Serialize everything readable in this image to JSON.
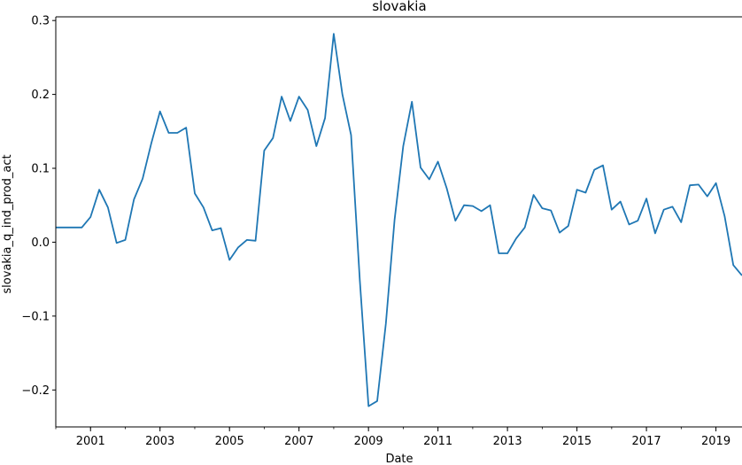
{
  "chart_data": {
    "type": "line",
    "title": "slovakia",
    "xlabel": "Date",
    "ylabel": "slovakia_q_ind_prod_act",
    "xlim": [
      "2000-01-01",
      "2019-10-01"
    ],
    "ylim": [
      -0.25,
      0.305
    ],
    "x_ticks": [
      "2001",
      "2003",
      "2005",
      "2007",
      "2009",
      "2011",
      "2013",
      "2015",
      "2017",
      "2019"
    ],
    "y_ticks": [
      -0.2,
      -0.1,
      0.0,
      0.1,
      0.2,
      0.3
    ],
    "y_tick_labels": [
      "−0.2",
      "−0.1",
      "0.0",
      "0.1",
      "0.2",
      "0.3"
    ],
    "grid": false,
    "legend": "none",
    "colors": {
      "line": "#1f77b4",
      "axes": "#000000",
      "background": "#ffffff"
    },
    "series": [
      {
        "x": [
          "2000-01",
          "2000-04",
          "2000-07",
          "2000-10",
          "2001-01",
          "2001-04",
          "2001-07",
          "2001-10",
          "2002-01",
          "2002-04",
          "2002-07",
          "2002-10",
          "2003-01",
          "2003-04",
          "2003-07",
          "2003-10",
          "2004-01",
          "2004-04",
          "2004-07",
          "2004-10",
          "2005-01",
          "2005-04",
          "2005-07",
          "2005-10",
          "2006-01",
          "2006-04",
          "2006-07",
          "2006-10",
          "2007-01",
          "2007-04",
          "2007-07",
          "2007-10",
          "2008-01",
          "2008-04",
          "2008-07",
          "2008-10",
          "2009-01",
          "2009-04",
          "2009-07",
          "2009-10",
          "2010-01",
          "2010-04",
          "2010-07",
          "2010-10",
          "2011-01",
          "2011-04",
          "2011-07",
          "2011-10",
          "2012-01",
          "2012-04",
          "2012-07",
          "2012-10",
          "2013-01",
          "2013-04",
          "2013-07",
          "2013-10",
          "2014-01",
          "2014-04",
          "2014-07",
          "2014-10",
          "2015-01",
          "2015-04",
          "2015-07",
          "2015-10",
          "2016-01",
          "2016-04",
          "2016-07",
          "2016-10",
          "2017-01",
          "2017-04",
          "2017-07",
          "2017-10",
          "2018-01",
          "2018-04",
          "2018-07",
          "2018-10",
          "2019-01",
          "2019-04",
          "2019-07",
          "2019-10"
        ],
        "values": [
          0.02,
          0.02,
          0.02,
          0.02,
          0.034,
          0.071,
          0.047,
          -0.001,
          0.003,
          0.058,
          0.086,
          0.134,
          0.177,
          0.148,
          0.148,
          0.155,
          0.066,
          0.047,
          0.016,
          0.019,
          -0.024,
          -0.007,
          0.003,
          0.002,
          0.124,
          0.141,
          0.197,
          0.164,
          0.197,
          0.179,
          0.13,
          0.168,
          0.282,
          0.2,
          0.145,
          -0.052,
          -0.222,
          -0.215,
          -0.11,
          0.03,
          0.13,
          0.19,
          0.101,
          0.085,
          0.109,
          0.073,
          0.029,
          0.05,
          0.049,
          0.042,
          0.05,
          -0.015,
          -0.015,
          0.005,
          0.02,
          0.064,
          0.046,
          0.043,
          0.013,
          0.022,
          0.071,
          0.067,
          0.098,
          0.104,
          0.044,
          0.055,
          0.024,
          0.029,
          0.059,
          0.012,
          0.044,
          0.048,
          0.027,
          0.077,
          0.078,
          0.062,
          0.08,
          0.035,
          -0.031,
          -0.045
        ]
      }
    ]
  }
}
